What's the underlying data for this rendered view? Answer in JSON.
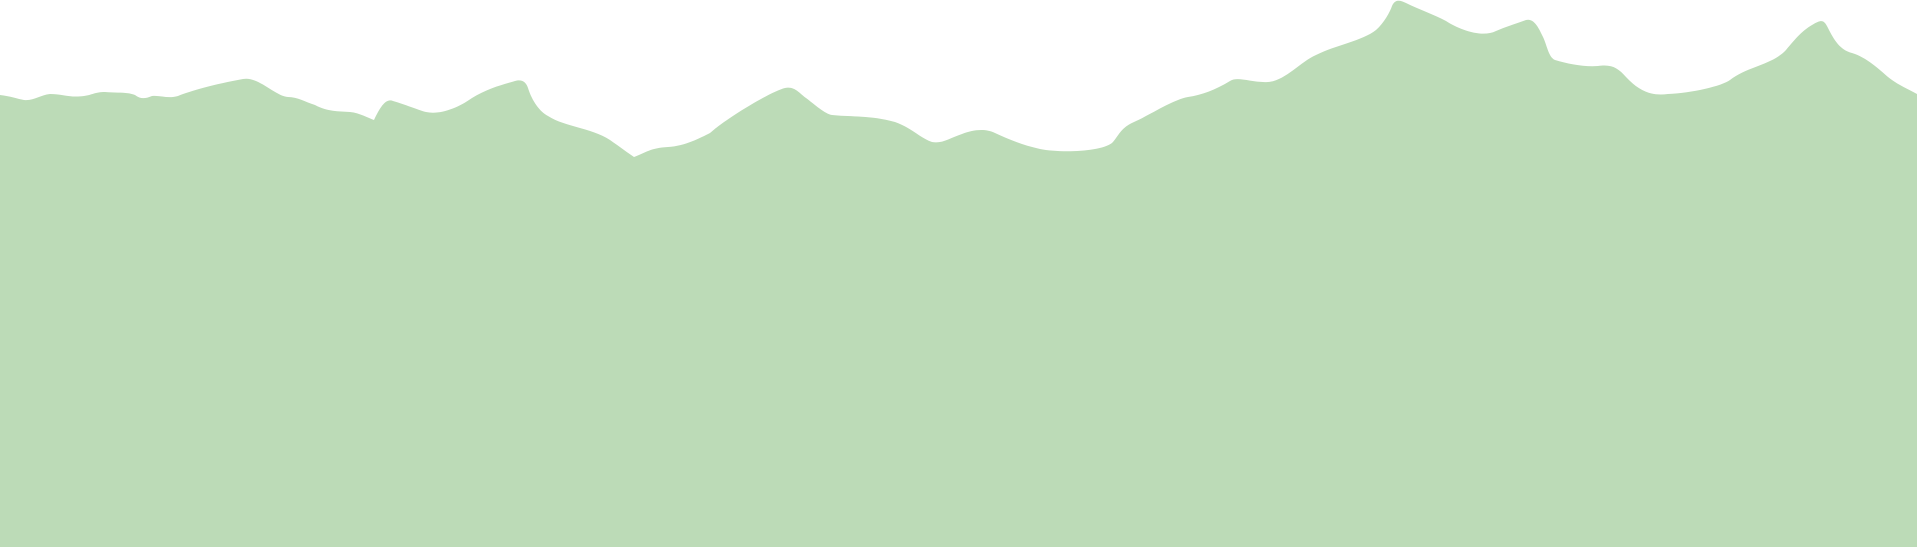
{
  "scene": {
    "background_color": "#ffffff",
    "fill_color": "#bcdbb7"
  }
}
